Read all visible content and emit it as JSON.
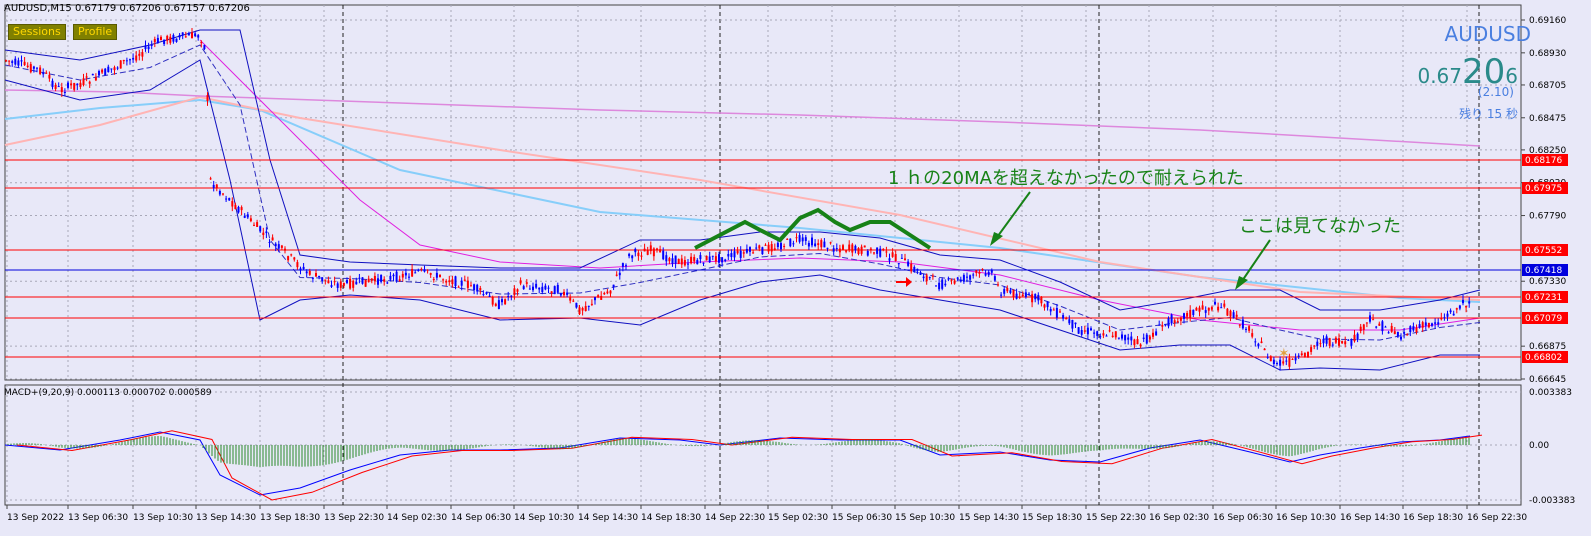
{
  "header": {
    "title": "AUDUSD,M15  0.67179 0.67206 0.67157 0.67206"
  },
  "buttons": {
    "sessions": "Sessions",
    "profile": "Profile"
  },
  "symbol_panel": {
    "symbol": "AUDUSD",
    "price_small_a": "0.67",
    "price_big": "20",
    "price_small_b": "6",
    "change": "(2.10)",
    "remaining": "残り 15 秒"
  },
  "annotations": {
    "ma_note": "1 ｈの20MAを超えなかったので耐えられた",
    "missed_note": "ここは見てなかった"
  },
  "price_axis": {
    "ticks": [
      "0.69160",
      "0.68930",
      "0.68705",
      "0.68475",
      "0.68250",
      "0.68020",
      "0.67790",
      "0.67330",
      "0.66875",
      "0.66645"
    ]
  },
  "hlines": [
    {
      "label": "0.68176",
      "color": "#ff0000"
    },
    {
      "label": "0.67975",
      "color": "#ff0000"
    },
    {
      "label": "0.67552",
      "color": "#ff0000"
    },
    {
      "label": "0.67418",
      "color": "#0000dd"
    },
    {
      "label": "0.67231",
      "color": "#ff0000"
    },
    {
      "label": "0.67079",
      "color": "#ff0000"
    },
    {
      "label": "0.66802",
      "color": "#ff0000"
    }
  ],
  "macd": {
    "label": "MACD+(9,20,9) 0.000113 0.000702 0.000589",
    "ticks": [
      "0.003383",
      "0.00",
      "-0.003383"
    ]
  },
  "time_axis": [
    "13 Sep 2022",
    "13 Sep 06:30",
    "13 Sep 10:30",
    "13 Sep 14:30",
    "13 Sep 18:30",
    "13 Sep 22:30",
    "14 Sep 02:30",
    "14 Sep 06:30",
    "14 Sep 10:30",
    "14 Sep 14:30",
    "14 Sep 18:30",
    "14 Sep 22:30",
    "15 Sep 02:30",
    "15 Sep 06:30",
    "15 Sep 10:30",
    "15 Sep 14:30",
    "15 Sep 18:30",
    "15 Sep 22:30",
    "16 Sep 02:30",
    "16 Sep 06:30",
    "16 Sep 10:30",
    "16 Sep 14:30",
    "16 Sep 18:30",
    "16 Sep 22:30"
  ],
  "colors": {
    "bull": "#0000ff",
    "bear": "#ff0000",
    "bg": "#e8e8f8",
    "ann": "#178217",
    "sky": "#87cefa",
    "pink": "#ffb4b4",
    "violet": "#dd88dd",
    "band": "#1010c0"
  }
}
